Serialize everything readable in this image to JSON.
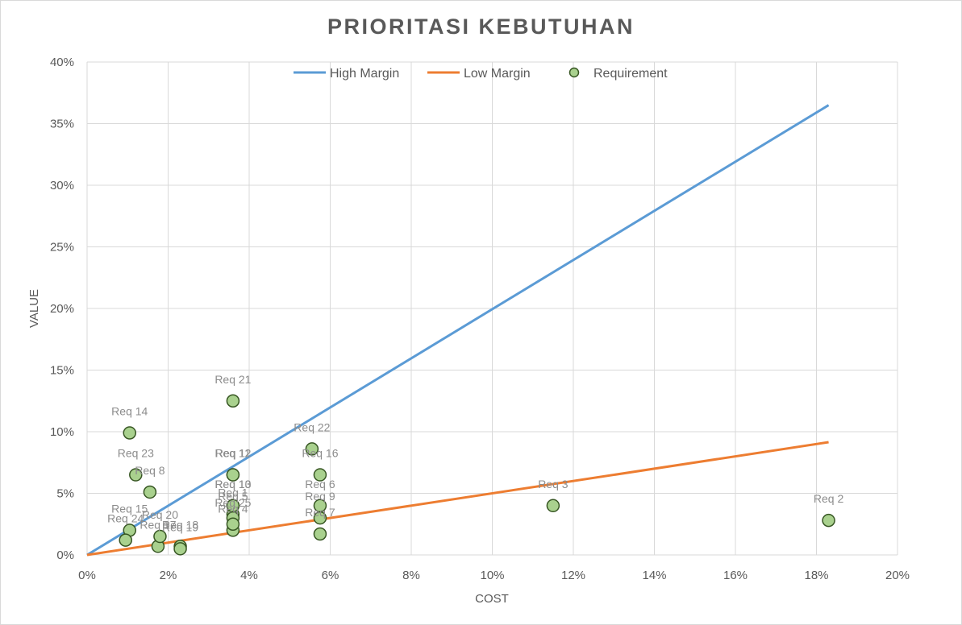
{
  "chart_data": {
    "type": "scatter",
    "title": "PRIORITASI KEBUTUHAN",
    "xlabel": "COST",
    "ylabel": "VALUE",
    "xlim": [
      0,
      20
    ],
    "ylim": [
      0,
      40
    ],
    "x_ticks": [
      "0%",
      "2%",
      "4%",
      "6%",
      "8%",
      "10%",
      "12%",
      "14%",
      "16%",
      "18%",
      "20%"
    ],
    "y_ticks": [
      "0%",
      "5%",
      "10%",
      "15%",
      "20%",
      "25%",
      "30%",
      "35%",
      "40%"
    ],
    "grid": true,
    "legend_position": "top",
    "lines": [
      {
        "name": "High Margin",
        "color": "#5b9bd5",
        "x": [
          0,
          18.3
        ],
        "y": [
          0,
          36.5
        ]
      },
      {
        "name": "Low Margin",
        "color": "#ed7d31",
        "x": [
          0,
          18.3
        ],
        "y": [
          0,
          9.15
        ]
      }
    ],
    "series": [
      {
        "name": "Requirement",
        "color": "#a9d18e",
        "edge_color": "#375623",
        "points": [
          {
            "label": "Req 1",
            "x": 3.6,
            "y": 3.3
          },
          {
            "label": "Req 2",
            "x": 18.3,
            "y": 2.8
          },
          {
            "label": "Req 3",
            "x": 11.5,
            "y": 4.0
          },
          {
            "label": "Req 4",
            "x": 3.6,
            "y": 2.0
          },
          {
            "label": "Req 5",
            "x": 3.6,
            "y": 3.0
          },
          {
            "label": "Req 6",
            "x": 5.75,
            "y": 4.0
          },
          {
            "label": "Req 7",
            "x": 5.75,
            "y": 1.7
          },
          {
            "label": "Req 8",
            "x": 1.55,
            "y": 5.1
          },
          {
            "label": "Req 9",
            "x": 5.75,
            "y": 3.0
          },
          {
            "label": "Req 10",
            "x": 3.6,
            "y": 4.0
          },
          {
            "label": "Req 11",
            "x": 3.6,
            "y": 6.5
          },
          {
            "label": "Req 12",
            "x": 3.6,
            "y": 6.5
          },
          {
            "label": "Req 13",
            "x": 3.6,
            "y": 4.0
          },
          {
            "label": "Req 14",
            "x": 1.05,
            "y": 9.9
          },
          {
            "label": "Req 15",
            "x": 1.05,
            "y": 2.0
          },
          {
            "label": "Req 16",
            "x": 5.75,
            "y": 6.5
          },
          {
            "label": "Req 17",
            "x": 1.75,
            "y": 0.7
          },
          {
            "label": "Req 18",
            "x": 2.3,
            "y": 0.7
          },
          {
            "label": "Req 19",
            "x": 2.3,
            "y": 0.5
          },
          {
            "label": "Req 20",
            "x": 1.8,
            "y": 1.5
          },
          {
            "label": "Req 21",
            "x": 3.6,
            "y": 12.5
          },
          {
            "label": "Req 22",
            "x": 5.55,
            "y": 8.6
          },
          {
            "label": "Req 23",
            "x": 1.2,
            "y": 6.5
          },
          {
            "label": "Req 24",
            "x": 0.95,
            "y": 1.2
          },
          {
            "label": "Req 25",
            "x": 3.6,
            "y": 2.5
          }
        ]
      }
    ]
  }
}
